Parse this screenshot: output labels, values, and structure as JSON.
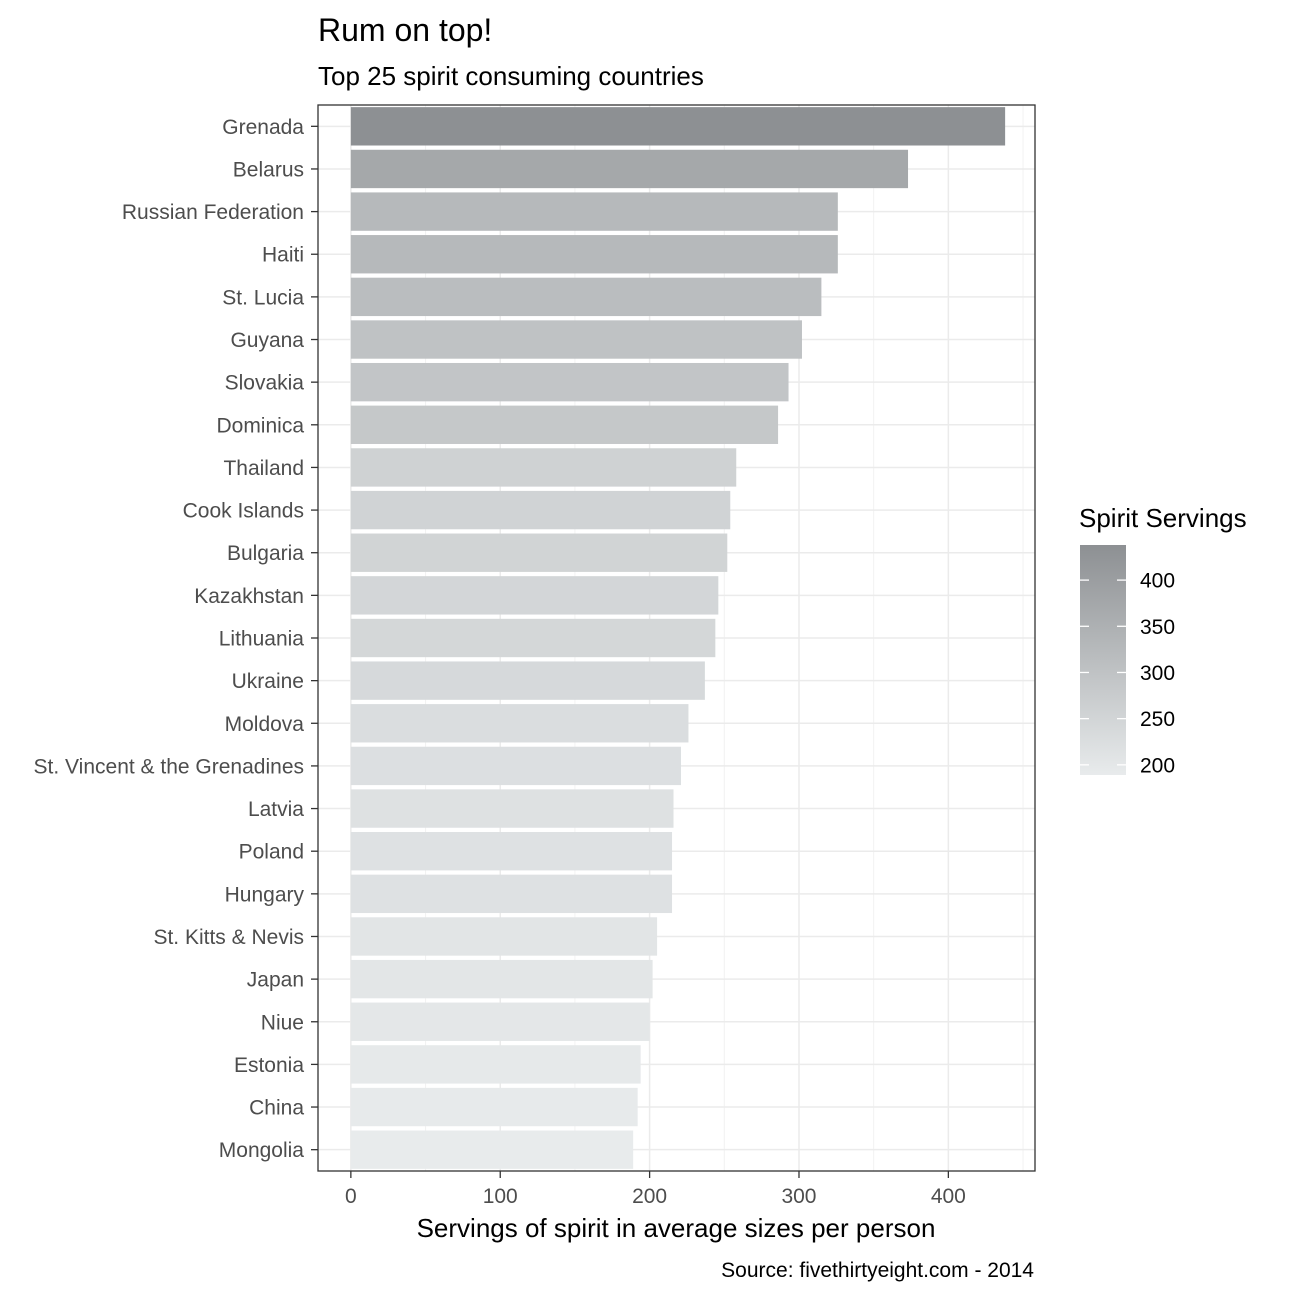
{
  "chart_data": {
    "type": "bar",
    "orientation": "horizontal",
    "title": "Rum on top!",
    "subtitle": "Top 25 spirit consuming countries",
    "xlabel": "Servings of spirit in average sizes per person",
    "ylabel": "",
    "caption": "Source: fivethirtyeight.com - 2014",
    "xlim": [
      -22,
      458
    ],
    "x_ticks": [
      0,
      100,
      200,
      300,
      400
    ],
    "grid": true,
    "categories": [
      "Grenada",
      "Belarus",
      "Russian Federation",
      "Haiti",
      "St. Lucia",
      "Guyana",
      "Slovakia",
      "Dominica",
      "Thailand",
      "Cook Islands",
      "Bulgaria",
      "Kazakhstan",
      "Lithuania",
      "Ukraine",
      "Moldova",
      "St. Vincent & the Grenadines",
      "Latvia",
      "Poland",
      "Hungary",
      "St. Kitts & Nevis",
      "Japan",
      "Niue",
      "Estonia",
      "China",
      "Mongolia"
    ],
    "values": [
      438,
      373,
      326,
      326,
      315,
      302,
      293,
      286,
      258,
      254,
      252,
      246,
      244,
      237,
      226,
      221,
      216,
      215,
      215,
      205,
      202,
      200,
      194,
      192,
      189
    ],
    "legend": {
      "title": "Spirit Servings",
      "position": "right",
      "ticks": [
        200,
        250,
        300,
        350,
        400
      ],
      "range": [
        189,
        438
      ],
      "color_low": "#e8ebec",
      "color_high": "#8d9093"
    }
  }
}
